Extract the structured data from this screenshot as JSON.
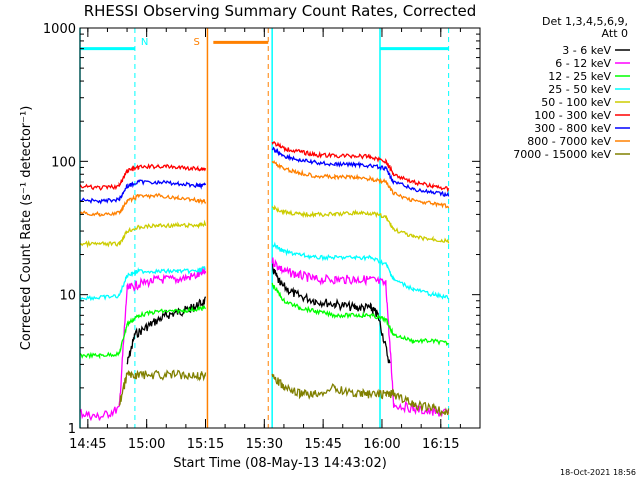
{
  "chart_data": {
    "type": "line",
    "title": "RHESSI Observing Summary Count Rates, Corrected",
    "xlabel": "Start Time (08-May-13 14:43:02)",
    "ylabel": "Corrected Count Rate (s⁻¹ detector⁻¹)",
    "y_scale": "log",
    "xlim": [
      0,
      102
    ],
    "ylim": [
      1,
      1000
    ],
    "x_ticks": [
      {
        "label": "14:45",
        "x": 2
      },
      {
        "label": "15:00",
        "x": 17
      },
      {
        "label": "15:15",
        "x": 32
      },
      {
        "label": "15:30",
        "x": 47
      },
      {
        "label": "15:45",
        "x": 62
      },
      {
        "label": "16:00",
        "x": 77
      },
      {
        "label": "16:15",
        "x": 92
      }
    ],
    "y_ticks": [
      {
        "label": "1",
        "y": 1
      },
      {
        "label": "10",
        "y": 10
      },
      {
        "label": "100",
        "y": 100
      },
      {
        "label": "1000",
        "y": 1000
      }
    ],
    "legend_header": [
      "Det 1,3,4,5,6,9,",
      "Att 0"
    ],
    "legend_position": "right",
    "series": [
      {
        "name": "3 - 6 keV",
        "color": "#000000",
        "x": [
          0,
          10,
          12,
          14,
          18,
          22,
          26,
          29,
          32
        ],
        "y": [
          null,
          null,
          3,
          5,
          6,
          7,
          7.5,
          8,
          9
        ],
        "x2": [
          49,
          51,
          55,
          60,
          65,
          70,
          74,
          76,
          79
        ],
        "y2": [
          16,
          12,
          10,
          9,
          8.5,
          8,
          8,
          7,
          3
        ]
      },
      {
        "name": "6 - 12 keV",
        "color": "#ff00ff",
        "x": [
          0,
          5,
          10,
          12,
          15,
          20,
          25,
          30,
          32
        ],
        "y": [
          1.3,
          1.2,
          1.4,
          11,
          12,
          13,
          13,
          14,
          15
        ],
        "x2": [
          49,
          52,
          56,
          60,
          65,
          70,
          74,
          78,
          80,
          85,
          90,
          94
        ],
        "y2": [
          18,
          15,
          14,
          13,
          13,
          13,
          13,
          12,
          1.5,
          1.4,
          1.3,
          1.3
        ]
      },
      {
        "name": "12 - 25 keV",
        "color": "#00ff00",
        "x": [
          0,
          5,
          10,
          12,
          15,
          20,
          25,
          30,
          32
        ],
        "y": [
          3.5,
          3.5,
          3.6,
          6,
          7,
          7.5,
          7.5,
          7.8,
          8
        ],
        "x2": [
          49,
          52,
          56,
          60,
          65,
          70,
          74,
          78,
          80,
          85,
          90,
          94
        ],
        "y2": [
          12,
          9,
          8,
          7.5,
          7,
          7,
          7,
          6.5,
          5,
          4.5,
          4.5,
          4.3
        ]
      },
      {
        "name": "25 - 50 keV",
        "color": "#00ffff",
        "x": [
          0,
          5,
          10,
          12,
          15,
          20,
          25,
          30,
          32
        ],
        "y": [
          9.5,
          9.5,
          9.8,
          14,
          15,
          15,
          15,
          15,
          16
        ],
        "x2": [
          49,
          52,
          56,
          60,
          65,
          70,
          74,
          78,
          80,
          85,
          90,
          94
        ],
        "y2": [
          24,
          21,
          20,
          19,
          19,
          19,
          19,
          17,
          13,
          11,
          10,
          9.5
        ]
      },
      {
        "name": "50 - 100 keV",
        "color": "#cccc00",
        "x": [
          0,
          5,
          10,
          12,
          15,
          20,
          25,
          30,
          32
        ],
        "y": [
          24,
          24,
          24,
          30,
          32,
          33,
          33,
          33,
          34
        ],
        "x2": [
          49,
          52,
          56,
          60,
          65,
          70,
          74,
          78,
          80,
          85,
          90,
          94
        ],
        "y2": [
          45,
          42,
          40,
          40,
          40,
          41,
          41,
          38,
          31,
          27,
          26,
          25
        ]
      },
      {
        "name": "100 - 300 keV",
        "color": "#ff0000",
        "x": [
          0,
          5,
          10,
          12,
          15,
          20,
          25,
          30,
          32
        ],
        "y": [
          65,
          63,
          65,
          85,
          90,
          92,
          90,
          88,
          88
        ],
        "x2": [
          49,
          52,
          56,
          60,
          65,
          70,
          74,
          78,
          80,
          85,
          90,
          94
        ],
        "y2": [
          140,
          125,
          118,
          112,
          110,
          110,
          108,
          100,
          80,
          70,
          65,
          62
        ]
      },
      {
        "name": "300 - 800 keV",
        "color": "#0000ff",
        "x": [
          0,
          5,
          10,
          12,
          15,
          20,
          25,
          30,
          32
        ],
        "y": [
          52,
          50,
          52,
          65,
          70,
          70,
          68,
          66,
          66
        ],
        "x2": [
          49,
          52,
          56,
          60,
          65,
          70,
          74,
          78,
          80,
          85,
          90,
          94
        ],
        "y2": [
          125,
          110,
          102,
          98,
          95,
          95,
          93,
          88,
          70,
          62,
          58,
          56
        ]
      },
      {
        "name": "800 - 7000 keV",
        "color": "#ff8000",
        "x": [
          0,
          5,
          10,
          12,
          15,
          20,
          25,
          30,
          32
        ],
        "y": [
          41,
          40,
          41,
          50,
          55,
          55,
          53,
          51,
          50
        ],
        "x2": [
          49,
          52,
          56,
          60,
          65,
          70,
          74,
          78,
          80,
          85,
          90,
          94
        ],
        "y2": [
          100,
          88,
          82,
          78,
          76,
          76,
          74,
          70,
          57,
          51,
          48,
          46
        ]
      },
      {
        "name": "7000 - 15000 keV",
        "color": "#808000",
        "x": [
          10,
          12,
          15,
          20,
          25,
          30,
          32
        ],
        "y": [
          1.5,
          2.5,
          2.5,
          2.5,
          2.5,
          2.5,
          2.5
        ],
        "x2": [
          49,
          52,
          56,
          60,
          65,
          70,
          74,
          78,
          80,
          85,
          90,
          94
        ],
        "y2": [
          2.5,
          2,
          1.8,
          1.8,
          2,
          1.8,
          1.8,
          1.8,
          1.8,
          1.5,
          1.4,
          1.3
        ]
      }
    ],
    "markers": [
      {
        "label": "N",
        "color": "#00ffff",
        "bar": [
          0,
          14
        ],
        "y": 700,
        "line_solid_x": 0,
        "line_dashed_x": 14
      },
      {
        "label": "S",
        "color": "#ff8000",
        "bar": [
          34,
          48
        ],
        "y": 780,
        "line_solid_x": 32.5,
        "line_dashed_x": 48
      },
      {
        "label": "",
        "color": "#00ffff",
        "bar": [
          76.5,
          94
        ],
        "y": 700,
        "line_solid_x": 76.5,
        "line_dashed_x": 94
      },
      {
        "label": "",
        "color": "#00ffff",
        "bar": null,
        "y": null,
        "line_solid_x": 49,
        "line_dashed_x": null
      }
    ],
    "timestamp": "18-Oct-2021 18:56"
  }
}
